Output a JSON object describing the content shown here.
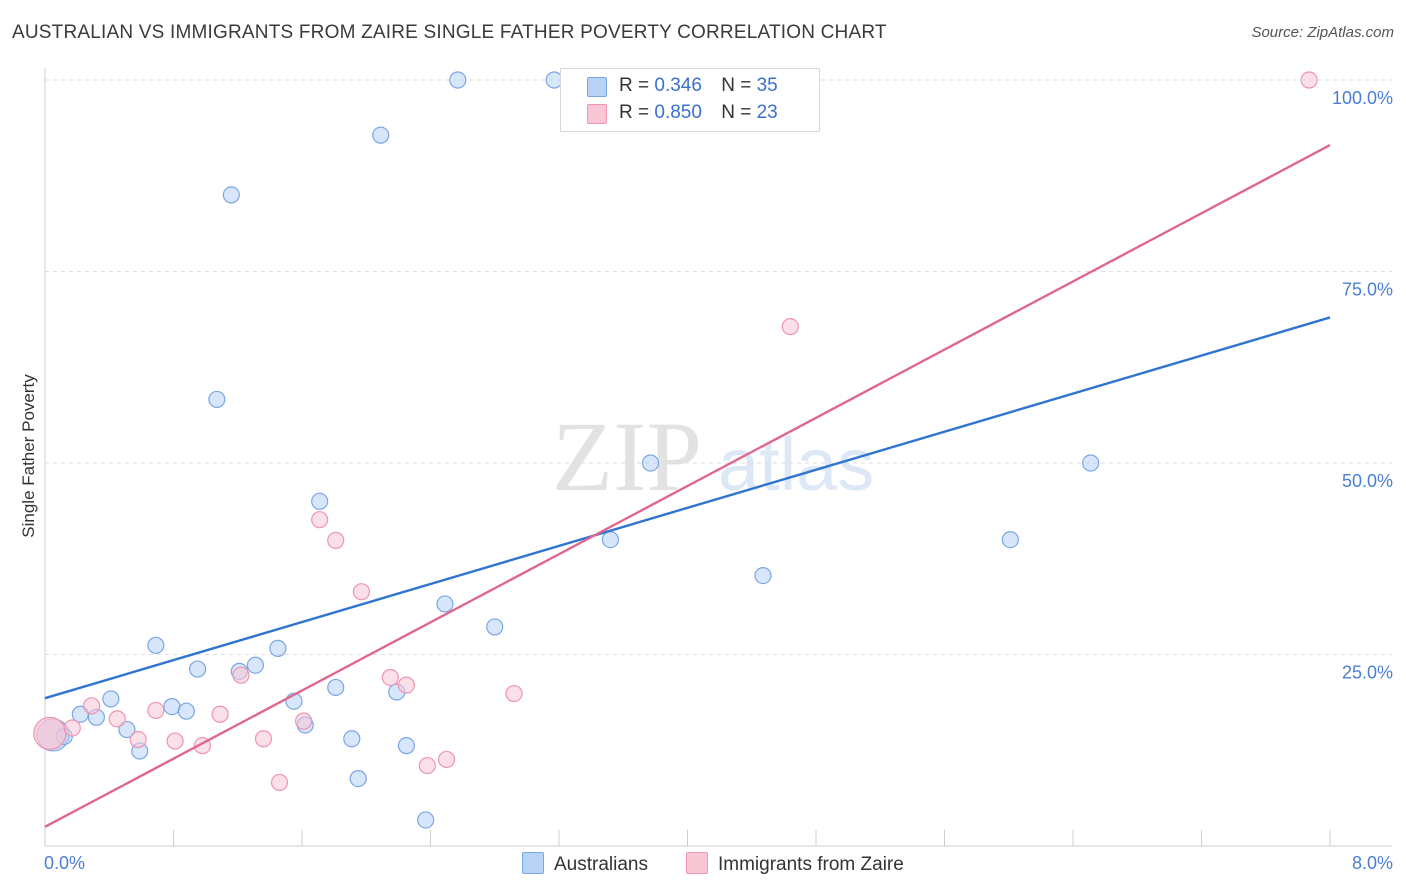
{
  "title": "AUSTRALIAN VS IMMIGRANTS FROM ZAIRE SINGLE FATHER POVERTY CORRELATION CHART",
  "source": "Source: ZipAtlas.com",
  "watermark": {
    "zip": "ZIP",
    "atlas": "atlas"
  },
  "legend_top": {
    "rows": [
      {
        "r_label": "R =",
        "r_value": "0.346",
        "n_label": "N =",
        "n_value": "35"
      },
      {
        "r_label": "R =",
        "r_value": "0.850",
        "n_label": "N =",
        "n_value": "23"
      }
    ]
  },
  "legend_bottom": {
    "series_a": "Australians",
    "series_b": "Immigrants from Zaire"
  },
  "colors": {
    "blue_fill": "#b7d2f5",
    "blue_stroke": "#7aa6e6",
    "blue_line": "#2f74d0",
    "pink_fill": "#f8c6d5",
    "pink_stroke": "#ef94b1",
    "pink_line": "#e0668f"
  },
  "chart_data": {
    "type": "scatter",
    "title": "AUSTRALIAN VS IMMIGRANTS FROM ZAIRE SINGLE FATHER POVERTY CORRELATION CHART",
    "xlabel": "",
    "ylabel": "Single Father Poverty",
    "xlim": [
      0,
      8
    ],
    "ylim": [
      0,
      100
    ],
    "x_tick_labels": [
      "0.0%",
      "8.0%"
    ],
    "y_tick_labels": [
      "25.0%",
      "50.0%",
      "75.0%",
      "100.0%"
    ],
    "y_ticks": [
      25,
      50,
      75,
      100
    ],
    "legend_position": "top-center",
    "series": [
      {
        "name": "Australians",
        "R": 0.346,
        "N": 35,
        "trend": {
          "x0": 0,
          "y0": 19.3,
          "x1": 8,
          "y1": 69
        },
        "points": [
          [
            0.05,
            14.5
          ],
          [
            0.12,
            14.3
          ],
          [
            0.22,
            17.2
          ],
          [
            0.32,
            16.8
          ],
          [
            0.41,
            19.2
          ],
          [
            0.51,
            15.2
          ],
          [
            0.59,
            12.4
          ],
          [
            0.69,
            26.2
          ],
          [
            0.79,
            18.2
          ],
          [
            0.88,
            17.6
          ],
          [
            0.95,
            23.1
          ],
          [
            1.07,
            58.3
          ],
          [
            1.16,
            85.0
          ],
          [
            1.21,
            22.8
          ],
          [
            1.31,
            23.6
          ],
          [
            1.45,
            25.8
          ],
          [
            1.55,
            18.9
          ],
          [
            1.62,
            15.8
          ],
          [
            1.71,
            45.0
          ],
          [
            1.81,
            20.7
          ],
          [
            1.91,
            14.0
          ],
          [
            1.95,
            8.8
          ],
          [
            2.09,
            92.8
          ],
          [
            2.19,
            20.1
          ],
          [
            2.25,
            13.1
          ],
          [
            2.37,
            3.4
          ],
          [
            2.49,
            31.6
          ],
          [
            2.57,
            100.0
          ],
          [
            2.8,
            28.6
          ],
          [
            3.17,
            100.0
          ],
          [
            3.52,
            40.0
          ],
          [
            3.77,
            50.0
          ],
          [
            4.47,
            35.3
          ],
          [
            6.01,
            40.0
          ],
          [
            6.51,
            50.0
          ]
        ]
      },
      {
        "name": "Immigrants from Zaire",
        "R": 0.85,
        "N": 23,
        "trend": {
          "x0": 0,
          "y0": 2.5,
          "x1": 8,
          "y1": 91.5
        },
        "points": [
          [
            0.03,
            14.7
          ],
          [
            0.17,
            15.4
          ],
          [
            0.29,
            18.3
          ],
          [
            0.45,
            16.6
          ],
          [
            0.58,
            13.9
          ],
          [
            0.69,
            17.7
          ],
          [
            0.81,
            13.7
          ],
          [
            0.98,
            13.1
          ],
          [
            1.09,
            17.2
          ],
          [
            1.22,
            22.3
          ],
          [
            1.36,
            14.0
          ],
          [
            1.46,
            8.3
          ],
          [
            1.61,
            16.3
          ],
          [
            1.71,
            42.6
          ],
          [
            1.81,
            39.9
          ],
          [
            1.97,
            33.2
          ],
          [
            2.15,
            22.0
          ],
          [
            2.25,
            21.0
          ],
          [
            2.38,
            10.5
          ],
          [
            2.5,
            11.3
          ],
          [
            2.92,
            19.9
          ],
          [
            4.64,
            67.8
          ],
          [
            7.87,
            100.0
          ]
        ]
      }
    ]
  }
}
